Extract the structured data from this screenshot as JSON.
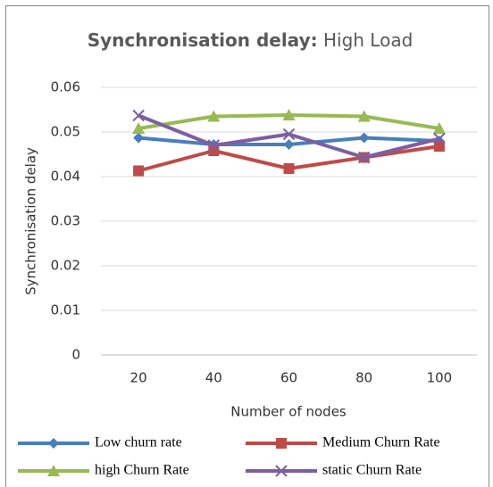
{
  "chart_data": {
    "type": "line",
    "title": "Synchronisation delay:",
    "subtitle": "High Load",
    "x_label": "Number of nodes",
    "y_label": "Synchronisation delay",
    "categories": [
      "20",
      "40",
      "60",
      "80",
      "100"
    ],
    "series": [
      {
        "name": "Low churn rate",
        "color": "#4a7ebb",
        "marker": "diamond",
        "values": [
          0.0487,
          0.0472,
          0.0472,
          0.0487,
          0.048
        ]
      },
      {
        "name": "Medium Churn Rate",
        "color": "#be4b48",
        "marker": "square",
        "values": [
          0.0413,
          0.0458,
          0.0418,
          0.0443,
          0.0468
        ]
      },
      {
        "name": "high Churn Rate",
        "color": "#98b954",
        "marker": "triangle",
        "values": [
          0.0508,
          0.0535,
          0.0538,
          0.0535,
          0.0508
        ]
      },
      {
        "name": "static Churn Rate",
        "color": "#7d5fa0",
        "marker": "x",
        "values": [
          0.0537,
          0.047,
          0.0495,
          0.0443,
          0.0485
        ]
      }
    ],
    "ylim": [
      0,
      0.06
    ],
    "yticks": [
      0,
      0.01,
      0.02,
      0.03,
      0.04,
      0.05,
      0.06
    ],
    "grid": true,
    "legend": "bottom"
  }
}
